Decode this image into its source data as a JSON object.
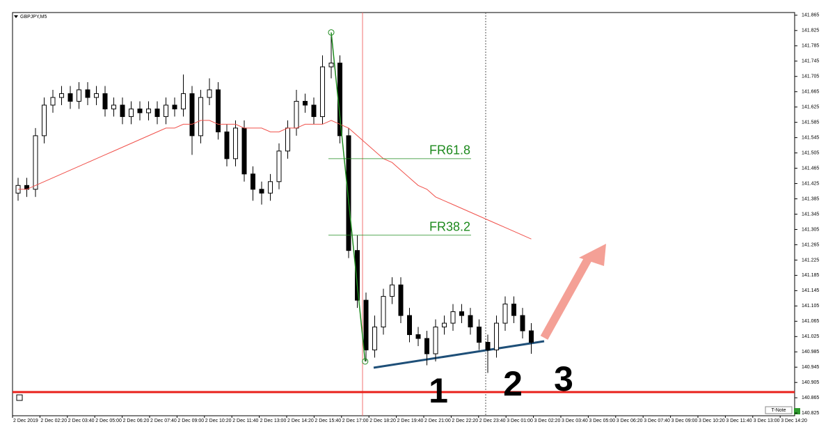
{
  "chart_data": {
    "type": "candlestick",
    "title": "GBPJPY,M5",
    "open": [
      141.4,
      141.42,
      141.41,
      141.55,
      141.63,
      141.65,
      141.66,
      141.64,
      141.67,
      141.65,
      141.66,
      141.62,
      141.63,
      141.6,
      141.62,
      141.61,
      141.62,
      141.6,
      141.63,
      141.62,
      141.66,
      141.55,
      141.65,
      141.67,
      141.56,
      141.49,
      141.57,
      141.45,
      141.41,
      141.4,
      141.43,
      141.51,
      141.57,
      141.64,
      141.63,
      141.6,
      141.73,
      141.74,
      141.55,
      141.25,
      141.12,
      140.99,
      141.05,
      141.13,
      141.16,
      141.08,
      141.03,
      141.02,
      140.98,
      141.05,
      141.06,
      141.09,
      141.08,
      141.05,
      141.01,
      140.99,
      141.06,
      141.11,
      141.08,
      141.04
    ],
    "high": [
      141.44,
      141.44,
      141.57,
      141.65,
      141.67,
      141.68,
      141.68,
      141.69,
      141.69,
      141.68,
      141.68,
      141.65,
      141.65,
      141.64,
      141.64,
      141.64,
      141.64,
      141.65,
      141.65,
      141.71,
      141.68,
      141.67,
      141.7,
      141.69,
      141.58,
      141.59,
      141.59,
      141.47,
      141.43,
      141.45,
      141.53,
      141.59,
      141.67,
      141.66,
      141.65,
      141.76,
      141.81,
      141.76,
      141.57,
      141.29,
      141.14,
      141.08,
      141.15,
      141.18,
      141.18,
      141.1,
      141.05,
      141.04,
      141.07,
      141.08,
      141.11,
      141.11,
      141.1,
      141.07,
      141.03,
      141.08,
      141.13,
      141.13,
      141.1,
      141.06
    ],
    "low": [
      141.38,
      141.39,
      141.39,
      141.53,
      141.61,
      141.63,
      141.62,
      141.62,
      141.63,
      141.63,
      141.6,
      141.6,
      141.58,
      141.58,
      141.59,
      141.59,
      141.58,
      141.58,
      141.6,
      141.6,
      141.5,
      141.53,
      141.63,
      141.54,
      141.47,
      141.47,
      141.43,
      141.38,
      141.37,
      141.38,
      141.41,
      141.49,
      141.55,
      141.61,
      141.58,
      141.58,
      141.7,
      141.53,
      141.23,
      141.1,
      140.96,
      140.97,
      141.03,
      141.11,
      141.06,
      141.01,
      141.0,
      140.95,
      140.96,
      141.03,
      141.04,
      141.06,
      141.03,
      140.99,
      140.93,
      140.97,
      141.04,
      141.06,
      141.02,
      140.98
    ],
    "close": [
      141.42,
      141.41,
      141.55,
      141.63,
      141.65,
      141.66,
      141.64,
      141.67,
      141.65,
      141.66,
      141.62,
      141.63,
      141.6,
      141.62,
      141.61,
      141.62,
      141.6,
      141.63,
      141.62,
      141.66,
      141.55,
      141.65,
      141.67,
      141.56,
      141.49,
      141.57,
      141.45,
      141.41,
      141.4,
      141.43,
      141.51,
      141.57,
      141.64,
      141.63,
      141.6,
      141.73,
      141.74,
      141.55,
      141.25,
      141.12,
      140.99,
      141.05,
      141.13,
      141.16,
      141.08,
      141.03,
      141.02,
      140.98,
      141.05,
      141.06,
      141.09,
      141.08,
      141.05,
      141.01,
      140.99,
      141.06,
      141.11,
      141.08,
      141.04,
      141.01
    ],
    "ma": {
      "color": "#f0504a",
      "values": [
        141.41,
        141.41,
        141.42,
        141.43,
        141.44,
        141.45,
        141.46,
        141.47,
        141.48,
        141.49,
        141.5,
        141.51,
        141.52,
        141.53,
        141.54,
        141.55,
        141.56,
        141.57,
        141.57,
        141.58,
        141.58,
        141.59,
        141.59,
        141.58,
        141.58,
        141.58,
        141.57,
        141.57,
        141.57,
        141.56,
        141.56,
        141.57,
        141.57,
        141.58,
        141.58,
        141.58,
        141.59,
        141.58,
        141.57,
        141.55,
        141.53,
        141.51,
        141.49,
        141.48,
        141.46,
        141.44,
        141.42,
        141.41,
        141.39,
        141.38,
        141.37,
        141.36,
        141.35,
        141.34,
        141.33,
        141.32,
        141.31,
        141.3,
        141.29,
        141.28
      ]
    },
    "x_labels": [
      "2 Dec 2019",
      "2 Dec 02:20",
      "2 Dec 03:40",
      "2 Dec 05:00",
      "2 Dec 06:20",
      "2 Dec 07:40",
      "2 Dec 09:00",
      "2 Dec 10:20",
      "2 Dec 11:40",
      "2 Dec 13:00",
      "2 Dec 14:20",
      "2 Dec 15:40",
      "2 Dec 17:00",
      "2 Dec 18:20",
      "2 Dec 19:40",
      "2 Dec 21:00",
      "2 Dec 22:20",
      "2 Dec 23:40",
      "3 Dec 01:00",
      "3 Dec 02:20",
      "3 Dec 03:40",
      "3 Dec 05:00",
      "3 Dec 06:20",
      "3 Dec 07:40",
      "3 Dec 09:00",
      "3 Dec 10:20",
      "3 Dec 11:40",
      "3 Dec 13:00",
      "3 Dec 14:20"
    ],
    "ylim": [
      140.818,
      141.872
    ],
    "yticks": [
      140.825,
      140.865,
      140.905,
      140.945,
      140.985,
      141.025,
      141.065,
      141.105,
      141.145,
      141.185,
      141.225,
      141.265,
      141.305,
      141.345,
      141.385,
      141.425,
      141.465,
      141.505,
      141.545,
      141.585,
      141.625,
      141.665,
      141.705,
      141.745,
      141.785,
      141.825,
      141.865
    ],
    "fib": {
      "color": "#1e8a1e",
      "high": 141.82,
      "low": 140.96,
      "levels": [
        {
          "value": 141.49,
          "label": "FR61.8"
        },
        {
          "value": 141.29,
          "label": "FR38.2"
        }
      ]
    },
    "support": {
      "value": 140.88,
      "color": "#e8201a"
    },
    "annotations": [
      "1",
      "2",
      "3"
    ],
    "button": "T-Note"
  }
}
